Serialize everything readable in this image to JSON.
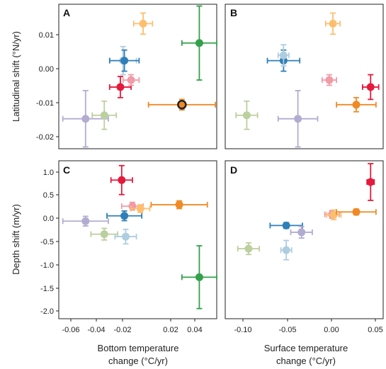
{
  "colors": {
    "purple": "#b3acd1",
    "sage": "#bccf9e",
    "lightblue": "#aecde0",
    "blue": "#2f7fb8",
    "red": "#e41a3c",
    "pink": "#f29aa6",
    "lightorange": "#fdbf6f",
    "orange": "#f08a24",
    "green": "#33a04b",
    "darkorange": "#e8781a"
  },
  "axes": {
    "ylabel_top": "Latitudinal shift (°N/yr)",
    "ylabel_bottom": "Depth shift (m/yr)",
    "xlabel_left": [
      "Bottom temperature",
      "change (°C/yr)"
    ],
    "xlabel_right": [
      "Surface temperature",
      "change (°C/yr)"
    ],
    "xticks_left": [
      "-0.06",
      "-0.04",
      "-0.02",
      "0.02",
      "0.04"
    ],
    "xticks_right": [
      "-0.10",
      "-0.05",
      "0.00",
      "0.05"
    ],
    "yticks_top": [
      "0.01",
      "0.00",
      "-0.01",
      "-0.02"
    ],
    "yticks_bottom": [
      "1.0",
      "0.5",
      "0.0",
      "-0.5",
      "-1.0",
      "-1.5",
      "-2.0"
    ]
  },
  "chart_data": [
    {
      "type": "scatter",
      "panel": "A",
      "xlim": [
        -0.066,
        0.052
      ],
      "ylim": [
        -0.0225,
        0.0185
      ],
      "points": [
        {
          "x": -0.046,
          "y": -0.014,
          "xerr": 0.017,
          "yerr": 0.008,
          "color": "purple"
        },
        {
          "x": -0.032,
          "y": -0.013,
          "xerr": 0.009,
          "yerr": 0.004,
          "color": "sage"
        },
        {
          "x": -0.018,
          "y": 0.0025,
          "xerr": 0.01,
          "yerr": 0.004,
          "color": "lightblue"
        },
        {
          "x": -0.017,
          "y": 0.0025,
          "xerr": 0.011,
          "yerr": 0.003,
          "color": "blue"
        },
        {
          "x": -0.02,
          "y": -0.005,
          "xerr": 0.008,
          "yerr": 0.003,
          "color": "red"
        },
        {
          "x": -0.012,
          "y": -0.003,
          "xerr": 0.006,
          "yerr": 0.0015,
          "color": "pink"
        },
        {
          "x": -0.003,
          "y": 0.013,
          "xerr": 0.007,
          "yerr": 0.003,
          "color": "lightorange"
        },
        {
          "x": 0.026,
          "y": -0.01,
          "xerr": 0.025,
          "yerr": 0.0015,
          "color": "orange",
          "highlight": true
        },
        {
          "x": 0.039,
          "y": 0.0075,
          "xerr": 0.013,
          "yerr": 0.0105,
          "color": "green"
        }
      ]
    },
    {
      "type": "scatter",
      "panel": "B",
      "xlim": [
        -0.118,
        0.058
      ],
      "ylim": [
        -0.0225,
        0.0185
      ],
      "points": [
        {
          "x": -0.094,
          "y": -0.013,
          "xerr": 0.012,
          "yerr": 0.004,
          "color": "sage"
        },
        {
          "x": -0.037,
          "y": -0.014,
          "xerr": 0.022,
          "yerr": 0.008,
          "color": "purple"
        },
        {
          "x": -0.053,
          "y": 0.0025,
          "xerr": 0.018,
          "yerr": 0.003,
          "color": "blue"
        },
        {
          "x": -0.053,
          "y": 0.004,
          "xerr": 0.006,
          "yerr": 0.003,
          "color": "lightblue"
        },
        {
          "x": -0.002,
          "y": -0.003,
          "xerr": 0.008,
          "yerr": 0.0015,
          "color": "pink"
        },
        {
          "x": 0.002,
          "y": 0.013,
          "xerr": 0.008,
          "yerr": 0.003,
          "color": "lightorange"
        },
        {
          "x": 0.028,
          "y": -0.01,
          "xerr": 0.022,
          "yerr": 0.002,
          "color": "orange"
        },
        {
          "x": 0.044,
          "y": -0.005,
          "xerr": 0.009,
          "yerr": 0.0035,
          "color": "red"
        }
      ]
    },
    {
      "type": "scatter",
      "panel": "C",
      "xlim": [
        -0.066,
        0.052
      ],
      "ylim": [
        -2.15,
        1.12
      ],
      "points": [
        {
          "x": -0.046,
          "y": -0.13,
          "xerr": 0.017,
          "yerr": 0.1,
          "color": "purple"
        },
        {
          "x": -0.032,
          "y": -0.4,
          "xerr": 0.01,
          "yerr": 0.12,
          "color": "sage"
        },
        {
          "x": -0.017,
          "y": -0.02,
          "xerr": 0.013,
          "yerr": 0.1,
          "color": "blue"
        },
        {
          "x": -0.016,
          "y": -0.45,
          "xerr": 0.008,
          "yerr": 0.15,
          "color": "lightblue"
        },
        {
          "x": -0.019,
          "y": 0.72,
          "xerr": 0.008,
          "yerr": 0.3,
          "color": "red"
        },
        {
          "x": -0.011,
          "y": 0.18,
          "xerr": 0.008,
          "yerr": 0.08,
          "color": "pink"
        },
        {
          "x": -0.005,
          "y": 0.13,
          "xerr": 0.007,
          "yerr": 0.08,
          "color": "lightorange"
        },
        {
          "x": 0.024,
          "y": 0.21,
          "xerr": 0.021,
          "yerr": 0.08,
          "color": "orange"
        },
        {
          "x": 0.039,
          "y": -1.29,
          "xerr": 0.013,
          "yerr": 0.65,
          "color": "green"
        }
      ]
    },
    {
      "type": "scatter",
      "panel": "D",
      "xlim": [
        -0.118,
        0.058
      ],
      "ylim": [
        -2.15,
        1.12
      ],
      "points": [
        {
          "x": -0.092,
          "y": -0.7,
          "xerr": 0.012,
          "yerr": 0.12,
          "color": "sage"
        },
        {
          "x": -0.05,
          "y": -0.73,
          "xerr": 0.006,
          "yerr": 0.2,
          "color": "lightblue"
        },
        {
          "x": -0.05,
          "y": -0.22,
          "xerr": 0.018,
          "yerr": 0.06,
          "color": "blue"
        },
        {
          "x": -0.033,
          "y": -0.36,
          "xerr": 0.012,
          "yerr": 0.12,
          "color": "purple"
        },
        {
          "x": 0.001,
          "y": 0.01,
          "xerr": 0.008,
          "yerr": 0.08,
          "color": "pink"
        },
        {
          "x": 0.003,
          "y": 0.0,
          "xerr": 0.008,
          "yerr": 0.1,
          "color": "lightorange"
        },
        {
          "x": 0.028,
          "y": 0.06,
          "xerr": 0.022,
          "yerr": 0.06,
          "color": "orange"
        },
        {
          "x": 0.044,
          "y": 0.68,
          "xerr": 0.004,
          "yerr": 0.38,
          "color": "red"
        }
      ]
    }
  ]
}
